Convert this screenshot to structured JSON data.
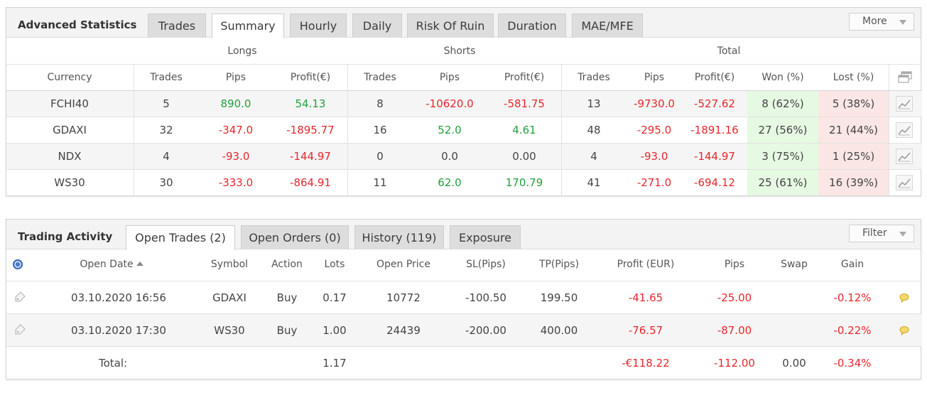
{
  "stats": {
    "title": "Advanced Statistics",
    "tabs": [
      {
        "label": "Trades"
      },
      {
        "label": "Summary"
      },
      {
        "label": "Hourly"
      },
      {
        "label": "Daily"
      },
      {
        "label": "Risk Of Ruin"
      },
      {
        "label": "Duration"
      },
      {
        "label": "MAE/MFE"
      }
    ],
    "active_tab": "Summary",
    "more_label": "More",
    "groups": {
      "longs": "Longs",
      "shorts": "Shorts",
      "total": "Total"
    },
    "columns": {
      "currency": "Currency",
      "trades": "Trades",
      "pips": "Pips",
      "profit": "Profit(€)",
      "won": "Won (%)",
      "lost": "Lost (%)"
    },
    "rows": [
      {
        "currency": "FCHI40",
        "l_trades": "5",
        "l_pips": "890.0",
        "l_profit": "54.13",
        "s_trades": "8",
        "s_pips": "-10620.0",
        "s_profit": "-581.75",
        "t_trades": "13",
        "t_pips": "-9730.0",
        "t_profit": "-527.62",
        "won": "8 (62%)",
        "lost": "5 (38%)"
      },
      {
        "currency": "GDAXI",
        "l_trades": "32",
        "l_pips": "-347.0",
        "l_profit": "-1895.77",
        "s_trades": "16",
        "s_pips": "52.0",
        "s_profit": "4.61",
        "t_trades": "48",
        "t_pips": "-295.0",
        "t_profit": "-1891.16",
        "won": "27 (56%)",
        "lost": "21 (44%)"
      },
      {
        "currency": "NDX",
        "l_trades": "4",
        "l_pips": "-93.0",
        "l_profit": "-144.97",
        "s_trades": "0",
        "s_pips": "0.0",
        "s_profit": "0.00",
        "t_trades": "4",
        "t_pips": "-93.0",
        "t_profit": "-144.97",
        "won": "3 (75%)",
        "lost": "1 (25%)"
      },
      {
        "currency": "WS30",
        "l_trades": "30",
        "l_pips": "-333.0",
        "l_profit": "-864.91",
        "s_trades": "11",
        "s_pips": "62.0",
        "s_profit": "170.79",
        "t_trades": "41",
        "t_pips": "-271.0",
        "t_profit": "-694.12",
        "won": "25 (61%)",
        "lost": "16 (39%)"
      }
    ]
  },
  "activity": {
    "title": "Trading Activity",
    "tabs": [
      {
        "label": "Open Trades (2)"
      },
      {
        "label": "Open Orders (0)"
      },
      {
        "label": "History (119)"
      },
      {
        "label": "Exposure"
      }
    ],
    "active_tab": "Open Trades (2)",
    "filter_label": "Filter",
    "columns": {
      "open_date": "Open Date",
      "symbol": "Symbol",
      "action": "Action",
      "lots": "Lots",
      "open_price": "Open Price",
      "sl": "SL(Pips)",
      "tp": "TP(Pips)",
      "profit": "Profit (EUR)",
      "pips": "Pips",
      "swap": "Swap",
      "gain": "Gain"
    },
    "rows": [
      {
        "open_date": "03.10.2020 16:56",
        "symbol": "GDAXI",
        "action": "Buy",
        "lots": "0.17",
        "open_price": "10772",
        "sl": "-100.50",
        "tp": "199.50",
        "profit": "-41.65",
        "pips": "-25.00",
        "swap": "",
        "gain": "-0.12%"
      },
      {
        "open_date": "03.10.2020 17:30",
        "symbol": "WS30",
        "action": "Buy",
        "lots": "1.00",
        "open_price": "24439",
        "sl": "-200.00",
        "tp": "400.00",
        "profit": "-76.57",
        "pips": "-87.00",
        "swap": "",
        "gain": "-0.22%"
      }
    ],
    "total": {
      "label": "Total:",
      "lots": "1.17",
      "profit": "-€118.22",
      "pips": "-112.00",
      "swap": "0.00",
      "gain": "-0.34%"
    }
  },
  "colors": {
    "positive": "#22a03c",
    "negative": "#e8262c",
    "won_bg": "#e6f9e3",
    "lost_bg": "#fbe6e6"
  }
}
